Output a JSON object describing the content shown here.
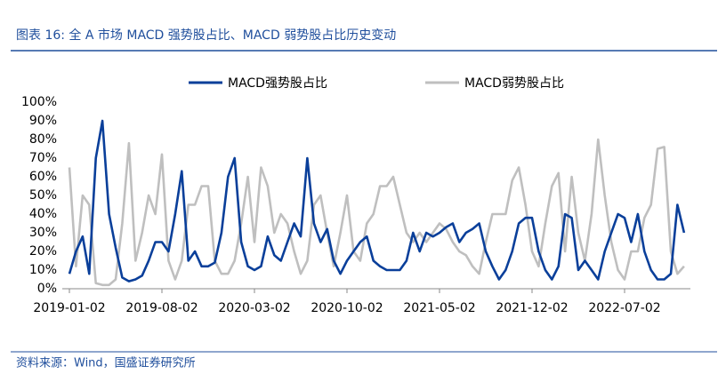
{
  "chart_data": {
    "type": "line",
    "title": "图表 16:  全 A 市场 MACD 强势股占比、MACD 弱势股占比历史变动",
    "source": "资料来源：Wind，国盛证券研究所",
    "categories": [
      "2019-01-02",
      null,
      null,
      null,
      null,
      null,
      null,
      null,
      null,
      null,
      null,
      null,
      null,
      null,
      "2019-08-02",
      null,
      null,
      null,
      null,
      null,
      null,
      null,
      null,
      null,
      null,
      null,
      null,
      null,
      "2020-03-02",
      null,
      null,
      null,
      null,
      null,
      null,
      null,
      null,
      null,
      null,
      null,
      null,
      null,
      "2020-10-02",
      null,
      null,
      null,
      null,
      null,
      null,
      null,
      null,
      null,
      null,
      null,
      null,
      null,
      "2021-05-02",
      null,
      null,
      null,
      null,
      null,
      null,
      null,
      null,
      null,
      null,
      null,
      null,
      null,
      "2021-12-02",
      null,
      null,
      null,
      null,
      null,
      null,
      null,
      null,
      null,
      null,
      null,
      null,
      null,
      "2022-07-02",
      null,
      null,
      null,
      null,
      null,
      null,
      null,
      null,
      null
    ],
    "series": [
      {
        "name": "MACD强势股占比",
        "color": "#0a3f9a",
        "values": [
          8,
          20,
          28,
          8,
          70,
          90,
          40,
          22,
          6,
          4,
          5,
          7,
          15,
          25,
          25,
          20,
          40,
          63,
          15,
          20,
          12,
          12,
          14,
          30,
          60,
          70,
          25,
          12,
          10,
          12,
          28,
          18,
          15,
          25,
          35,
          28,
          70,
          35,
          25,
          32,
          15,
          8,
          15,
          20,
          25,
          28,
          15,
          12,
          10,
          10,
          10,
          15,
          30,
          20,
          30,
          28,
          30,
          33,
          35,
          25,
          30,
          32,
          35,
          20,
          12,
          5,
          10,
          20,
          35,
          38,
          38,
          20,
          10,
          5,
          12,
          40,
          38,
          10,
          15,
          10,
          5,
          20,
          30,
          40,
          38,
          25,
          40,
          20,
          10,
          5,
          5,
          8,
          45,
          30
        ]
      },
      {
        "name": "MACD弱势股占比",
        "color": "#bfbfbf",
        "values": [
          65,
          12,
          50,
          45,
          3,
          2,
          2,
          5,
          35,
          78,
          15,
          30,
          50,
          40,
          72,
          15,
          5,
          15,
          45,
          45,
          55,
          55,
          15,
          8,
          8,
          15,
          35,
          60,
          25,
          65,
          55,
          30,
          40,
          35,
          20,
          8,
          15,
          45,
          50,
          30,
          12,
          30,
          50,
          20,
          15,
          35,
          40,
          55,
          55,
          60,
          45,
          30,
          25,
          30,
          25,
          30,
          35,
          32,
          25,
          20,
          18,
          12,
          8,
          25,
          40,
          40,
          40,
          58,
          65,
          45,
          20,
          12,
          35,
          55,
          62,
          20,
          60,
          30,
          15,
          40,
          80,
          50,
          25,
          10,
          5,
          20,
          20,
          38,
          45,
          75,
          76,
          20,
          8,
          12
        ]
      }
    ],
    "ylim": [
      0,
      100
    ],
    "yticks": [
      {
        "value": 0,
        "label": "0%"
      },
      {
        "value": 10,
        "label": "10%"
      },
      {
        "value": 20,
        "label": "20%"
      },
      {
        "value": 30,
        "label": "30%"
      },
      {
        "value": 40,
        "label": "40%"
      },
      {
        "value": 50,
        "label": "50%"
      },
      {
        "value": 60,
        "label": "60%"
      },
      {
        "value": 70,
        "label": "70%"
      },
      {
        "value": 80,
        "label": "80%"
      },
      {
        "value": 90,
        "label": "90%"
      },
      {
        "value": 100,
        "label": "100%"
      }
    ],
    "legend": "top"
  }
}
